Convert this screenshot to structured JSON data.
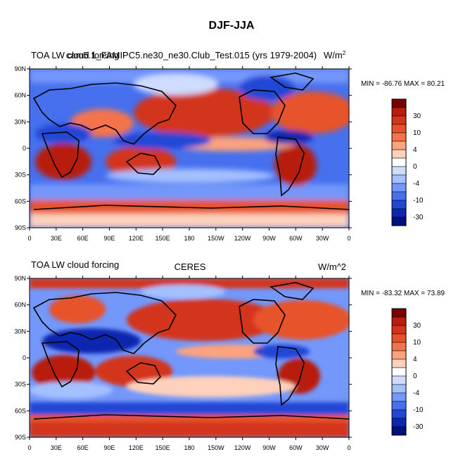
{
  "figure_title": "DJF-JJA",
  "chart_data": [
    {
      "type": "heatmap",
      "title_left": "TOA LW cloud forcing",
      "title_center": "cam5.1_FAMIPC5.ne30_ne30.Club_Test.015 (yrs 1979-2004)",
      "units_label": "W/m",
      "units_sup": "2",
      "min_max": "MIN = -86.76 MAX =  80.21",
      "y_ticks": [
        "90N",
        "60N",
        "30N",
        "0",
        "30S",
        "60S",
        "90S"
      ],
      "x_ticks": [
        "0",
        "30E",
        "60E",
        "90E",
        "120E",
        "150E",
        "180",
        "150W",
        "120W",
        "90W",
        "60W",
        "30W",
        "0"
      ],
      "colorbar_labels": [
        "30",
        "10",
        "4",
        "0",
        "-4",
        "-10",
        "-30"
      ]
    },
    {
      "type": "heatmap",
      "title_left": "TOA LW cloud forcing",
      "title_center": "CERES",
      "units_label": "W/m^2",
      "units_sup": "",
      "min_max": "MIN = -83.32 MAX =  73.89",
      "y_ticks": [
        "90N",
        "60N",
        "30N",
        "0",
        "30S",
        "60S",
        "90S"
      ],
      "x_ticks": [
        "0",
        "30E",
        "60E",
        "90E",
        "120E",
        "150E",
        "180",
        "150W",
        "120W",
        "90W",
        "60W",
        "30W",
        "0"
      ],
      "colorbar_labels": [
        "30",
        "10",
        "4",
        "0",
        "-4",
        "-10",
        "-30"
      ]
    }
  ],
  "colors": {
    "palette": [
      "#7a0000",
      "#b71c0c",
      "#d3341a",
      "#e7522c",
      "#f5734b",
      "#fba27e",
      "#fdd1bb",
      "#ffffff",
      "#cfdcff",
      "#a3c0ff",
      "#7397fa",
      "#4670ee",
      "#2346d6",
      "#0d28b0",
      "#00117a"
    ],
    "coast": "#000000"
  }
}
